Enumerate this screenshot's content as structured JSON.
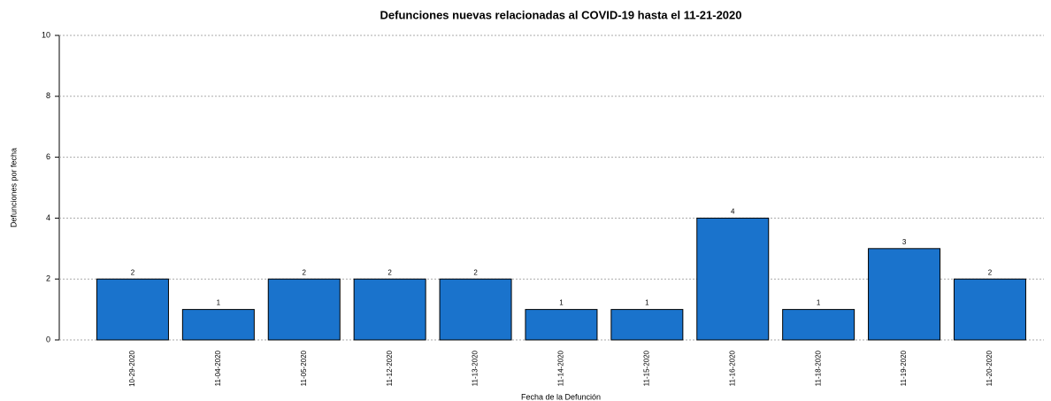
{
  "chart_data": {
    "type": "bar",
    "title": "Defunciones nuevas relacionadas al COVID-19 hasta el 11-21-2020",
    "x_label": "Fecha de la Defunción",
    "y_label": "Defunciones por fecha",
    "categories": [
      "10-29-2020",
      "11-04-2020",
      "11-05-2020",
      "11-12-2020",
      "11-13-2020",
      "11-14-2020",
      "11-15-2020",
      "11-16-2020",
      "11-18-2020",
      "11-19-2020",
      "11-20-2020"
    ],
    "values": [
      2,
      1,
      2,
      2,
      2,
      1,
      1,
      4,
      1,
      3,
      2
    ],
    "color": "#1a73cc",
    "ylim": [
      0,
      10
    ],
    "yticks": [
      0,
      2,
      4,
      6,
      8,
      10
    ],
    "grid": true
  }
}
